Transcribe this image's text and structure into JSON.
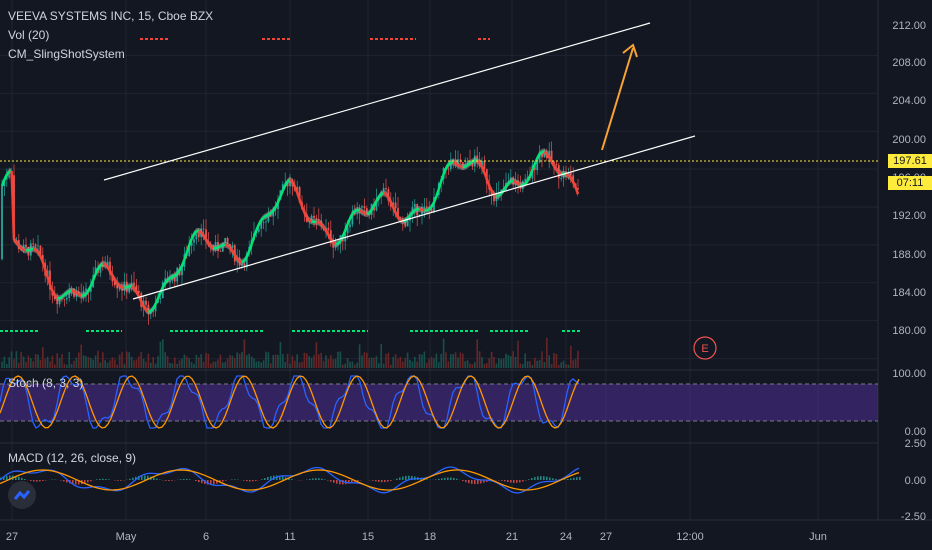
{
  "header": {
    "symbol_line": "VEEVA SYSTEMS INC, 15, Cboe BZX",
    "vol_label": "Vol (20)",
    "indicator_label": "CM_SlingShotSystem"
  },
  "last_price": {
    "value": "197.61",
    "countdown": "07:11"
  },
  "chart_data": [
    {
      "type": "candlestick",
      "title": "VEEVA SYSTEMS INC, 15, Cboe BZX",
      "y_ticks": [
        "212.00",
        "208.00",
        "204.00",
        "200.00",
        "196.00",
        "192.00",
        "188.00",
        "184.00",
        "180.00"
      ],
      "x_ticks": [
        "27",
        "May",
        "6",
        "11",
        "15",
        "18",
        "21",
        "24",
        "27",
        "12:00",
        "Jun"
      ],
      "ylim": [
        177,
        215
      ],
      "last_price": 197.61,
      "approx_close_path": [
        {
          "x": "27",
          "y": 190.5
        },
        {
          "x": "May",
          "y": 186.5
        },
        {
          "x": "6",
          "y": 191.0
        },
        {
          "x": "11",
          "y": 196.0
        },
        {
          "x": "15",
          "y": 194.0
        },
        {
          "x": "18",
          "y": 198.0
        },
        {
          "x": "21",
          "y": 200.0
        },
        {
          "x": "24",
          "y": 198.5
        }
      ],
      "annotations": [
        "ascending channel",
        "arrow up target ~211",
        "earnings marker E"
      ]
    },
    {
      "type": "line",
      "title": "Stoch (8, 3, 3)",
      "y_ticks": [
        "100.00",
        "0.00"
      ],
      "band": [
        20,
        80
      ],
      "series_colors": [
        "#2962ff",
        "#ff9800"
      ]
    },
    {
      "type": "histogram+line",
      "title": "MACD (12, 26, close, 9)",
      "y_ticks": [
        "2.50",
        "0.00",
        "-2.50"
      ],
      "series_colors": [
        "#2962ff",
        "#ff9800"
      ]
    }
  ],
  "colors": {
    "bg": "#131722",
    "grid": "#1f2430",
    "up": "#26a69a",
    "down": "#ef5350",
    "price_line": "#ffeb3b",
    "channel": "#ffffff",
    "arrow": "#f7a233",
    "stoch_band": "#4a2b8a"
  }
}
